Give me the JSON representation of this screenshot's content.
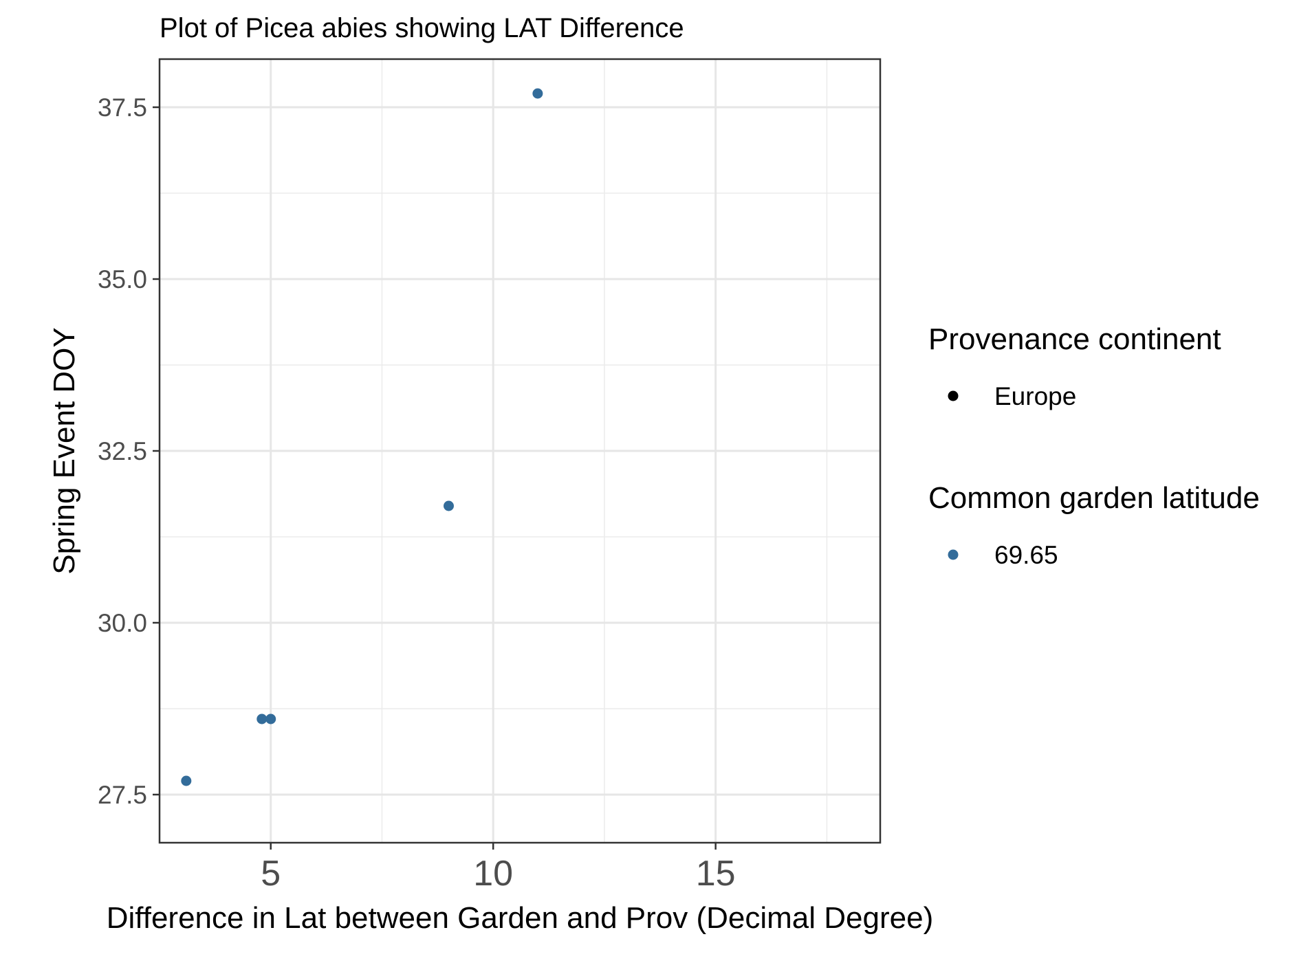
{
  "chart_data": {
    "type": "scatter",
    "title": "Plot of Picea abies showing LAT Difference",
    "xlabel": "Difference in Lat between Garden and Prov (Decimal Degree)",
    "ylabel": "Spring Event DOY",
    "xlim": [
      2.5,
      18.7
    ],
    "ylim": [
      26.8,
      38.2
    ],
    "x_ticks": [
      5,
      10,
      15
    ],
    "x_tick_labels": [
      "5",
      "10",
      "15"
    ],
    "y_ticks": [
      27.5,
      30.0,
      32.5,
      35.0,
      37.5
    ],
    "y_tick_labels": [
      "27.5",
      "30.0",
      "32.5",
      "35.0",
      "37.5"
    ],
    "grid": true,
    "legend_position": "right",
    "point_color": "#336c9a",
    "series": [
      {
        "continent": "Europe",
        "garden_latitude": "69.65",
        "points": [
          {
            "x": 3.1,
            "y": 27.7
          },
          {
            "x": 4.8,
            "y": 28.6
          },
          {
            "x": 5.0,
            "y": 28.6
          },
          {
            "x": 9.0,
            "y": 31.7
          },
          {
            "x": 11.0,
            "y": 37.7
          }
        ]
      }
    ],
    "legends": [
      {
        "title": "Provenance continent",
        "items": [
          {
            "label": "Europe",
            "color": "#000000"
          }
        ]
      },
      {
        "title": "Common garden latitude",
        "items": [
          {
            "label": "69.65",
            "color": "#336c9a"
          }
        ]
      }
    ]
  }
}
